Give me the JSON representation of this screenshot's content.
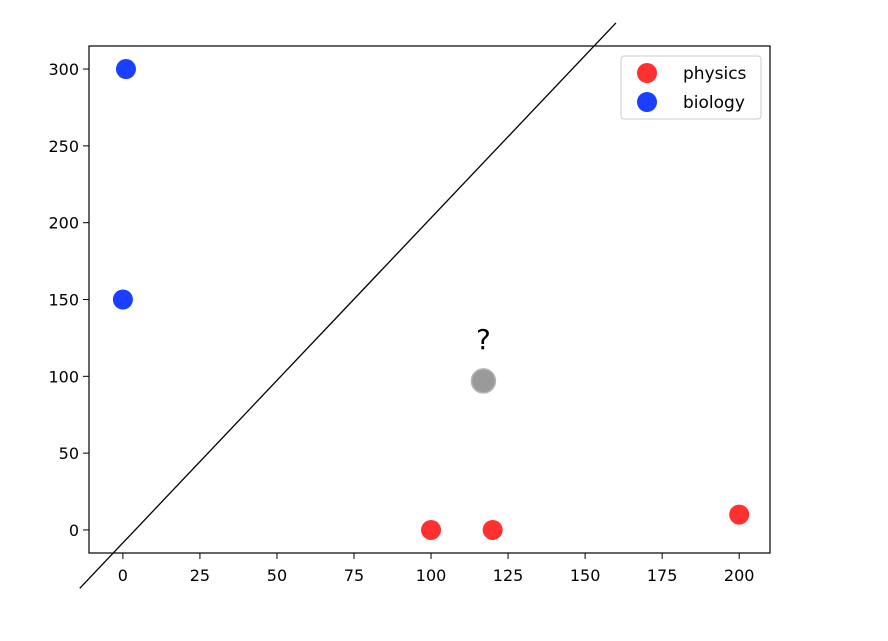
{
  "chart_data": {
    "type": "scatter",
    "title": "",
    "xlabel": "",
    "ylabel": "",
    "xlim": [
      -11,
      210
    ],
    "ylim": [
      -15,
      315
    ],
    "x_ticks": [
      0,
      25,
      50,
      75,
      100,
      125,
      150,
      175,
      200
    ],
    "y_ticks": [
      0,
      50,
      100,
      150,
      200,
      250,
      300
    ],
    "grid": false,
    "legend_position": "top-right",
    "series": [
      {
        "name": "physics",
        "color": "#ff3030",
        "points": [
          {
            "x": 100,
            "y": 0
          },
          {
            "x": 120,
            "y": 0
          },
          {
            "x": 200,
            "y": 10
          }
        ]
      },
      {
        "name": "biology",
        "color": "#1a3fff",
        "points": [
          {
            "x": 1,
            "y": 300
          },
          {
            "x": 0,
            "y": 150
          }
        ]
      }
    ],
    "unknown_point": {
      "x": 117,
      "y": 97,
      "color": "#9a9a9a",
      "label": "?"
    },
    "decision_line": {
      "color": "#000000",
      "points": [
        {
          "x": -14,
          "y": -38
        },
        {
          "x": 160,
          "y": 330
        }
      ]
    }
  }
}
